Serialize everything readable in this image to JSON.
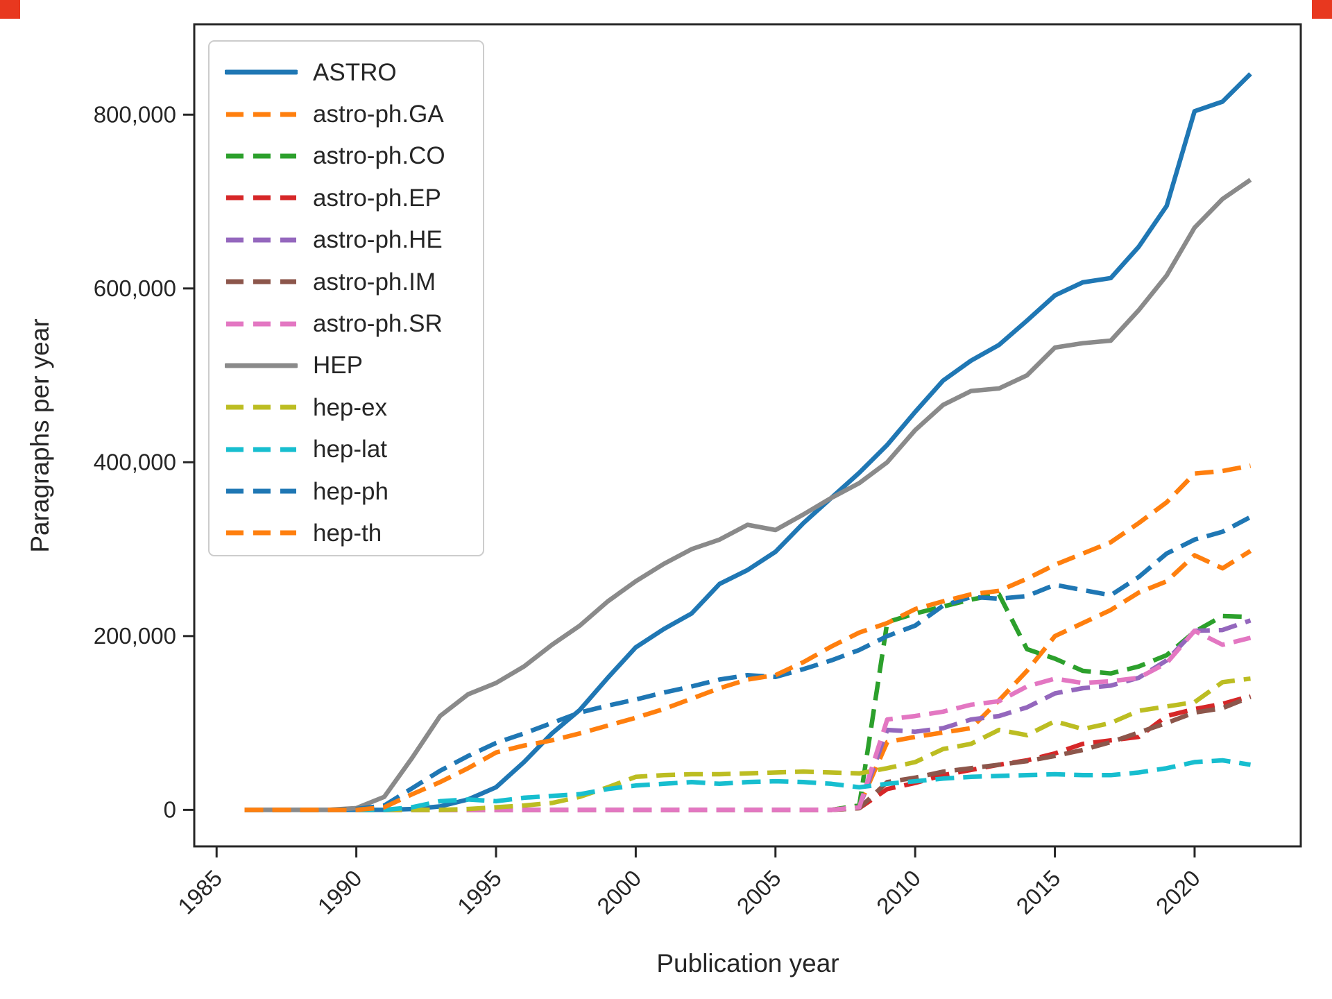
{
  "figure": {
    "background": "#ffffff",
    "corner_marker_color": "#e8381f"
  },
  "axes": {
    "spine_color": "#262626",
    "tick_color": "#262626",
    "label_color": "#262626",
    "x_tick_labels": [
      "1985",
      "1990",
      "1995",
      "2000",
      "2005",
      "2010",
      "2015",
      "2020"
    ],
    "y_tick_labels": [
      "0",
      "200,000",
      "400,000",
      "600,000",
      "800,000"
    ]
  },
  "chart_data": {
    "type": "line",
    "title": "",
    "xlabel": "Publication year",
    "ylabel": "Paragraphs per year",
    "xlim": [
      1984.2,
      2023.8
    ],
    "ylim": [
      -42000,
      904000
    ],
    "x_ticks": [
      1985,
      1990,
      1995,
      2000,
      2005,
      2010,
      2015,
      2020
    ],
    "y_ticks": [
      0,
      200000,
      400000,
      600000,
      800000
    ],
    "grid": false,
    "legend_position": "upper left",
    "x": [
      1986,
      1987,
      1988,
      1989,
      1990,
      1991,
      1992,
      1993,
      1994,
      1995,
      1996,
      1997,
      1998,
      1999,
      2000,
      2001,
      2002,
      2003,
      2004,
      2005,
      2006,
      2007,
      2008,
      2009,
      2010,
      2011,
      2012,
      2013,
      2014,
      2015,
      2016,
      2017,
      2018,
      2019,
      2020,
      2021,
      2022
    ],
    "series": [
      {
        "name": "ASTRO",
        "color": "#1f77b4",
        "dash": "solid",
        "values": [
          0,
          0,
          0,
          0,
          0,
          0,
          1000,
          4000,
          12000,
          26000,
          55000,
          88000,
          115000,
          152000,
          187000,
          208000,
          226000,
          260000,
          276000,
          297000,
          330000,
          359000,
          388000,
          420000,
          458000,
          494000,
          517000,
          535000,
          563000,
          592000,
          607000,
          612000,
          648000,
          695000,
          804000,
          815000,
          847000
        ]
      },
      {
        "name": "astro-ph.GA",
        "color": "#ff7f0e",
        "dash": "dashed",
        "values": [
          0,
          0,
          0,
          0,
          0,
          0,
          0,
          0,
          0,
          0,
          0,
          0,
          0,
          0,
          0,
          0,
          0,
          0,
          0,
          0,
          0,
          0,
          5000,
          78000,
          84000,
          89000,
          94000,
          126000,
          160000,
          200000,
          215000,
          230000,
          250000,
          263000,
          293000,
          278000,
          298000
        ]
      },
      {
        "name": "astro-ph.CO",
        "color": "#2ca02c",
        "dash": "dashed",
        "values": [
          0,
          0,
          0,
          0,
          0,
          0,
          0,
          0,
          0,
          0,
          0,
          0,
          0,
          0,
          0,
          0,
          0,
          0,
          0,
          0,
          0,
          0,
          5000,
          216000,
          226000,
          234000,
          242000,
          248000,
          185000,
          174000,
          160000,
          157000,
          165000,
          178000,
          205000,
          223000,
          222000
        ]
      },
      {
        "name": "astro-ph.EP",
        "color": "#d62728",
        "dash": "dashed",
        "values": [
          0,
          0,
          0,
          0,
          0,
          0,
          0,
          0,
          0,
          0,
          0,
          0,
          0,
          0,
          0,
          0,
          0,
          0,
          0,
          0,
          0,
          0,
          2000,
          24000,
          31000,
          40000,
          46000,
          52000,
          57000,
          65000,
          76000,
          80000,
          84000,
          108000,
          116000,
          122000,
          131000
        ]
      },
      {
        "name": "astro-ph.HE",
        "color": "#9467bd",
        "dash": "dashed",
        "values": [
          0,
          0,
          0,
          0,
          0,
          0,
          0,
          0,
          0,
          0,
          0,
          0,
          0,
          0,
          0,
          0,
          0,
          0,
          0,
          0,
          0,
          0,
          3000,
          92000,
          90000,
          94000,
          104000,
          108000,
          118000,
          134000,
          140000,
          143000,
          152000,
          172000,
          206000,
          207000,
          218000
        ]
      },
      {
        "name": "astro-ph.IM",
        "color": "#8c564b",
        "dash": "dashed",
        "values": [
          0,
          0,
          0,
          0,
          0,
          0,
          0,
          0,
          0,
          0,
          0,
          0,
          0,
          0,
          0,
          0,
          0,
          0,
          0,
          0,
          0,
          0,
          2000,
          32000,
          37000,
          44000,
          48000,
          52000,
          56000,
          62000,
          69000,
          78000,
          89000,
          100000,
          112000,
          117000,
          130000
        ]
      },
      {
        "name": "astro-ph.SR",
        "color": "#e377c2",
        "dash": "dashed",
        "values": [
          0,
          0,
          0,
          0,
          0,
          0,
          0,
          0,
          0,
          0,
          0,
          0,
          0,
          0,
          0,
          0,
          0,
          0,
          0,
          0,
          0,
          0,
          3000,
          104000,
          108000,
          113000,
          121000,
          125000,
          142000,
          151000,
          146000,
          148000,
          152000,
          169000,
          206000,
          190000,
          198000
        ]
      },
      {
        "name": "HEP",
        "color": "#8a8a8a",
        "dash": "solid",
        "values": [
          0,
          0,
          0,
          0,
          2000,
          15000,
          60000,
          108000,
          133000,
          146000,
          165000,
          190000,
          212000,
          240000,
          263000,
          283000,
          300000,
          311000,
          328000,
          322000,
          340000,
          359000,
          376000,
          400000,
          437000,
          466000,
          482000,
          485000,
          500000,
          532000,
          537000,
          540000,
          575000,
          615000,
          670000,
          703000,
          725000
        ]
      },
      {
        "name": "hep-ex",
        "color": "#bcbd22",
        "dash": "dashed",
        "values": [
          0,
          0,
          0,
          0,
          0,
          0,
          0,
          0,
          1000,
          3000,
          5000,
          8000,
          15000,
          26000,
          38000,
          40000,
          41000,
          41000,
          42000,
          43000,
          44000,
          43000,
          42000,
          48000,
          55000,
          70000,
          76000,
          92000,
          86000,
          102000,
          93000,
          100000,
          114000,
          119000,
          124000,
          147000,
          151000
        ]
      },
      {
        "name": "hep-lat",
        "color": "#17becf",
        "dash": "dashed",
        "values": [
          0,
          0,
          0,
          0,
          0,
          0,
          3000,
          10000,
          12000,
          10000,
          14000,
          16000,
          18000,
          24000,
          28000,
          30000,
          32000,
          30000,
          32000,
          33000,
          32000,
          30000,
          26000,
          30000,
          33000,
          36000,
          38000,
          39000,
          40000,
          41000,
          40000,
          40000,
          43000,
          48000,
          55000,
          57000,
          52000
        ]
      },
      {
        "name": "hep-ph",
        "color": "#1f77b4",
        "dash": "dashed",
        "values": [
          0,
          0,
          0,
          0,
          1000,
          5000,
          25000,
          45000,
          62000,
          77000,
          88000,
          100000,
          112000,
          120000,
          127000,
          135000,
          142000,
          150000,
          155000,
          153000,
          162000,
          172000,
          184000,
          200000,
          212000,
          235000,
          245000,
          243000,
          246000,
          259000,
          253000,
          247000,
          268000,
          295000,
          311000,
          320000,
          337000
        ]
      },
      {
        "name": "hep-th",
        "color": "#ff7f0e",
        "dash": "dashed",
        "values": [
          0,
          0,
          0,
          0,
          0,
          3000,
          18000,
          32000,
          48000,
          66000,
          74000,
          80000,
          88000,
          97000,
          106000,
          116000,
          128000,
          140000,
          150000,
          155000,
          170000,
          188000,
          204000,
          215000,
          231000,
          240000,
          248000,
          252000,
          266000,
          282000,
          295000,
          308000,
          330000,
          354000,
          387000,
          390000,
          396000
        ]
      }
    ]
  }
}
